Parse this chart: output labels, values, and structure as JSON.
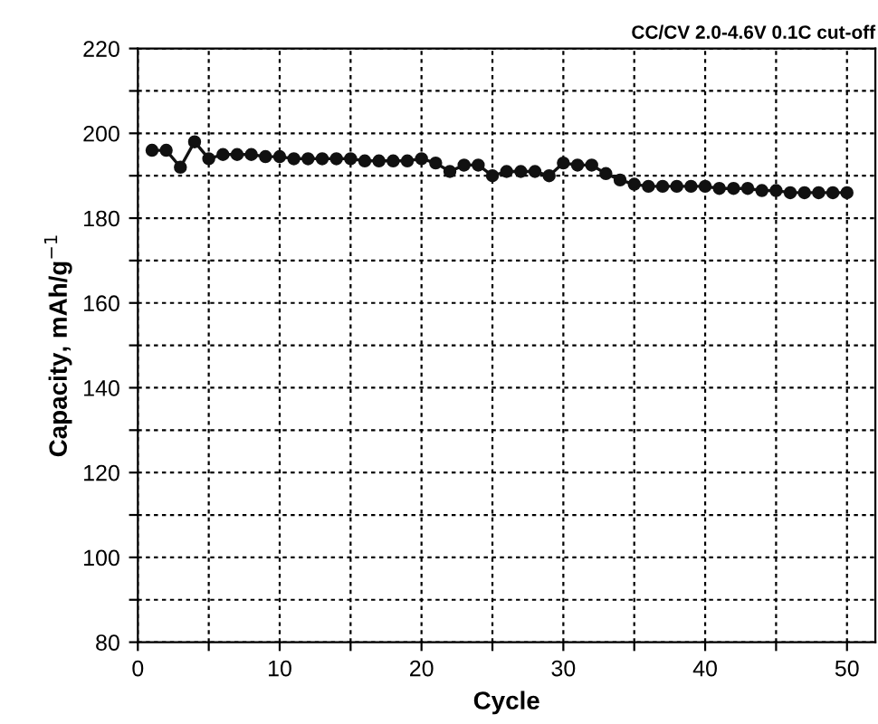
{
  "chart_data": {
    "type": "line",
    "xlabel": "Cycle",
    "ylabel": "Capacity, mAh/g$^{−1}$",
    "annotations": [
      "CC/CV 2.0-4.6V 0.1C cut-off"
    ],
    "x": [
      1,
      2,
      3,
      4,
      5,
      6,
      7,
      8,
      9,
      10,
      11,
      12,
      13,
      14,
      15,
      16,
      17,
      18,
      19,
      20,
      21,
      22,
      23,
      24,
      25,
      26,
      27,
      28,
      29,
      30,
      31,
      32,
      33,
      34,
      35,
      36,
      37,
      38,
      39,
      40,
      41,
      42,
      43,
      44,
      45,
      46,
      47,
      48,
      49,
      50
    ],
    "series": [
      {
        "color": "#111111",
        "values": [
          196,
          196,
          192,
          198,
          194,
          195,
          195,
          195,
          194.5,
          194.5,
          194,
          194,
          194,
          194,
          194,
          193.5,
          193.5,
          193.5,
          193.5,
          194,
          193,
          191,
          192.5,
          192.5,
          190,
          191,
          191,
          191,
          190,
          193,
          192.5,
          192.5,
          190.5,
          189,
          188,
          187.5,
          187.5,
          187.5,
          187.5,
          187.5,
          187,
          187,
          187,
          186.5,
          186.5,
          186,
          186,
          186,
          186,
          186
        ]
      }
    ],
    "xlim": [
      0,
      52
    ],
    "xticks": [
      0,
      {
        "value": 5,
        "label": null
      },
      10,
      {
        "value": 15,
        "label": null
      },
      20,
      {
        "value": 25,
        "label": null
      },
      30,
      {
        "value": 35,
        "label": null
      },
      40,
      {
        "value": 45,
        "label": null
      },
      50
    ],
    "ylim": [
      80,
      220
    ],
    "yticks": [
      80,
      {
        "value": 90,
        "label": null
      },
      100,
      {
        "value": 110,
        "label": null
      },
      120,
      {
        "value": 130,
        "label": null
      },
      140,
      {
        "value": 150,
        "label": null
      },
      160,
      {
        "value": 170,
        "label": null
      },
      180,
      {
        "value": 190,
        "label": null
      },
      200,
      {
        "value": 210,
        "label": null
      },
      220
    ],
    "grid": true,
    "marker": "circle",
    "line_style": "solid"
  }
}
